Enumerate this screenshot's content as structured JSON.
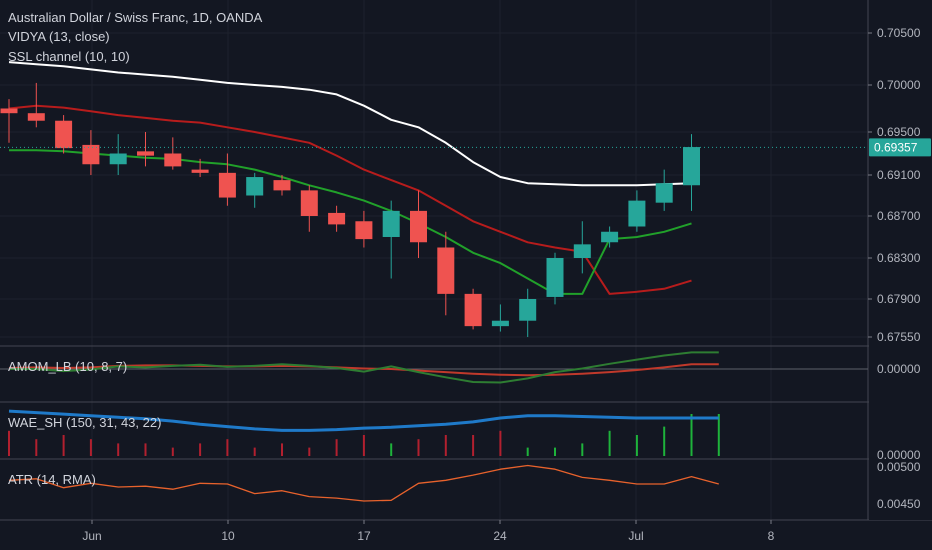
{
  "header": {
    "title": "Australian Dollar / Swiss Franc, 1D, OANDA",
    "indicator_1": "VIDYA (13, close)",
    "indicator_2": "SSL channel (10, 10)"
  },
  "panes": {
    "amom_label": "AMOM_LB (10, 8, 7)",
    "wae_label": "WAE_SH (150, 31, 43, 22)",
    "atr_label": "ATR (14, RMA)"
  },
  "colors": {
    "background": "#131722",
    "up": "#26a69a",
    "down": "#ef5350",
    "vidya": "#ffffff",
    "ssl_up": "#089981",
    "ssl_green": "#21a12a",
    "ssl_red": "#b71c1c",
    "wae_line": "#1f7ac9",
    "atr_line": "#e8622c",
    "amom_green": "#2e7d32",
    "amom_red": "#c0392b"
  },
  "chart_data": [
    {
      "type": "candlestick",
      "title": "Australian Dollar / Swiss Franc, 1D, OANDA",
      "x_ticks": [
        "Jun",
        "10",
        "17",
        "24",
        "Jul",
        "8"
      ],
      "y_ticks": [
        "0.70500",
        "0.70000",
        "0.69500",
        "0.69100",
        "0.68700",
        "0.68300",
        "0.67900",
        "0.67550"
      ],
      "last_price": "0.69357",
      "ylim": [
        0.6735,
        0.7075
      ],
      "candles": [
        {
          "o": 0.6975,
          "h": 0.6985,
          "l": 0.694,
          "c": 0.697
        },
        {
          "o": 0.697,
          "h": 0.7002,
          "l": 0.6955,
          "c": 0.6962
        },
        {
          "o": 0.6962,
          "h": 0.6968,
          "l": 0.693,
          "c": 0.6935
        },
        {
          "o": 0.6938,
          "h": 0.6952,
          "l": 0.691,
          "c": 0.692
        },
        {
          "o": 0.692,
          "h": 0.6948,
          "l": 0.691,
          "c": 0.693
        },
        {
          "o": 0.6932,
          "h": 0.695,
          "l": 0.6918,
          "c": 0.6928
        },
        {
          "o": 0.693,
          "h": 0.6945,
          "l": 0.6915,
          "c": 0.6918
        },
        {
          "o": 0.6915,
          "h": 0.6925,
          "l": 0.6908,
          "c": 0.6912
        },
        {
          "o": 0.6912,
          "h": 0.693,
          "l": 0.688,
          "c": 0.6888
        },
        {
          "o": 0.689,
          "h": 0.6912,
          "l": 0.6878,
          "c": 0.6908
        },
        {
          "o": 0.6905,
          "h": 0.691,
          "l": 0.689,
          "c": 0.6895
        },
        {
          "o": 0.6895,
          "h": 0.69,
          "l": 0.6855,
          "c": 0.687
        },
        {
          "o": 0.6873,
          "h": 0.688,
          "l": 0.6855,
          "c": 0.6862
        },
        {
          "o": 0.6865,
          "h": 0.6875,
          "l": 0.684,
          "c": 0.6848
        },
        {
          "o": 0.685,
          "h": 0.6885,
          "l": 0.681,
          "c": 0.6875
        },
        {
          "o": 0.6875,
          "h": 0.6895,
          "l": 0.683,
          "c": 0.6845
        },
        {
          "o": 0.684,
          "h": 0.6855,
          "l": 0.6775,
          "c": 0.6795
        },
        {
          "o": 0.6795,
          "h": 0.68,
          "l": 0.6762,
          "c": 0.6765
        },
        {
          "o": 0.6765,
          "h": 0.6785,
          "l": 0.676,
          "c": 0.677
        },
        {
          "o": 0.677,
          "h": 0.68,
          "l": 0.6755,
          "c": 0.679
        },
        {
          "o": 0.6792,
          "h": 0.6835,
          "l": 0.6785,
          "c": 0.683
        },
        {
          "o": 0.683,
          "h": 0.6865,
          "l": 0.6815,
          "c": 0.6843
        },
        {
          "o": 0.6845,
          "h": 0.686,
          "l": 0.684,
          "c": 0.6855
        },
        {
          "o": 0.686,
          "h": 0.6895,
          "l": 0.6855,
          "c": 0.6885
        },
        {
          "o": 0.6883,
          "h": 0.6915,
          "l": 0.6875,
          "c": 0.6902
        },
        {
          "o": 0.69,
          "h": 0.6948,
          "l": 0.6875,
          "c": 0.6936
        }
      ],
      "vidya": [
        0.7022,
        0.702,
        0.7018,
        0.7015,
        0.7012,
        0.701,
        0.7008,
        0.7005,
        0.7002,
        0.7,
        0.6998,
        0.6995,
        0.699,
        0.6978,
        0.6963,
        0.6955,
        0.694,
        0.6922,
        0.6908,
        0.6902,
        0.6901,
        0.69,
        0.69,
        0.69,
        0.6901,
        0.6902
      ],
      "ssl_green": [
        0.6933,
        0.6933,
        0.6932,
        0.693,
        0.6928,
        0.6926,
        0.6925,
        0.6922,
        0.692,
        0.6915,
        0.6908,
        0.69,
        0.6893,
        0.6885,
        0.6875,
        0.6863,
        0.685,
        0.6835,
        0.6825,
        0.681,
        0.6795,
        0.6795,
        0.6848,
        0.685,
        0.6855,
        0.6863
      ],
      "ssl_red": [
        0.6975,
        0.6978,
        0.6976,
        0.6972,
        0.6968,
        0.6965,
        0.6962,
        0.696,
        0.6955,
        0.695,
        0.6945,
        0.694,
        0.6928,
        0.6915,
        0.6905,
        0.6895,
        0.688,
        0.6865,
        0.6855,
        0.6845,
        0.684,
        0.6836,
        0.6795,
        0.6797,
        0.68,
        0.6808
      ]
    },
    {
      "type": "line",
      "title": "AMOM_LB (10, 8, 7)",
      "y_ticks": [
        "0.00000"
      ],
      "series": [
        {
          "name": "",
          "values": [
            0.0,
            0.0,
            -0.4,
            -0.1,
            0.5,
            0.3,
            0.6,
            0.8,
            0.4,
            0.6,
            0.9,
            0.6,
            0.2,
            -0.5,
            0.5,
            -0.6,
            -1.6,
            -2.5,
            -2.6,
            -1.8,
            -0.6,
            0.1,
            1.0,
            1.8,
            2.6,
            3.2,
            3.2
          ]
        },
        {
          "name": "",
          "values": [
            0.2,
            0.3,
            0.2,
            0.3,
            0.6,
            0.7,
            0.7,
            0.6,
            0.5,
            0.5,
            0.6,
            0.5,
            0.3,
            0.1,
            0.0,
            -0.3,
            -0.6,
            -0.9,
            -1.1,
            -1.2,
            -1.1,
            -0.9,
            -0.6,
            -0.2,
            0.3,
            0.9,
            0.9
          ]
        }
      ]
    },
    {
      "type": "bar",
      "title": "WAE_SH (150, 31, 43, 22)",
      "y_ticks": [
        "0.00000"
      ],
      "bars": [
        0.6,
        0.4,
        0.5,
        0.4,
        0.3,
        0.3,
        0.2,
        0.3,
        0.4,
        0.2,
        0.3,
        0.2,
        0.4,
        0.5,
        0.3,
        0.4,
        0.5,
        0.5,
        0.6,
        0.2,
        0.2,
        0.3,
        0.6,
        0.5,
        0.7,
        1.0,
        1.0
      ],
      "bar_sign": [
        -1,
        -1,
        -1,
        -1,
        -1,
        -1,
        -1,
        -1,
        -1,
        -1,
        -1,
        -1,
        -1,
        -1,
        1,
        -1,
        -1,
        -1,
        -1,
        1,
        1,
        1,
        1,
        1,
        1,
        1,
        1
      ],
      "line": [
        2.9,
        2.8,
        2.7,
        2.6,
        2.5,
        2.4,
        2.25,
        2.05,
        1.9,
        1.75,
        1.65,
        1.65,
        1.7,
        1.8,
        1.85,
        1.95,
        2.05,
        2.2,
        2.45,
        2.6,
        2.6,
        2.55,
        2.5,
        2.45,
        2.45,
        2.45,
        2.45
      ]
    },
    {
      "type": "line",
      "title": "ATR (14, RMA)",
      "y_ticks": [
        "0.00500",
        "0.00450"
      ],
      "series": [
        {
          "name": "",
          "values": [
            0.00482,
            0.00484,
            0.00472,
            0.00478,
            0.00473,
            0.00474,
            0.0047,
            0.00478,
            0.00477,
            0.00464,
            0.00468,
            0.0046,
            0.00458,
            0.00454,
            0.00455,
            0.00478,
            0.00482,
            0.00489,
            0.00497,
            0.00502,
            0.00497,
            0.00486,
            0.00482,
            0.00477,
            0.00477,
            0.00487,
            0.00477
          ]
        }
      ]
    }
  ]
}
